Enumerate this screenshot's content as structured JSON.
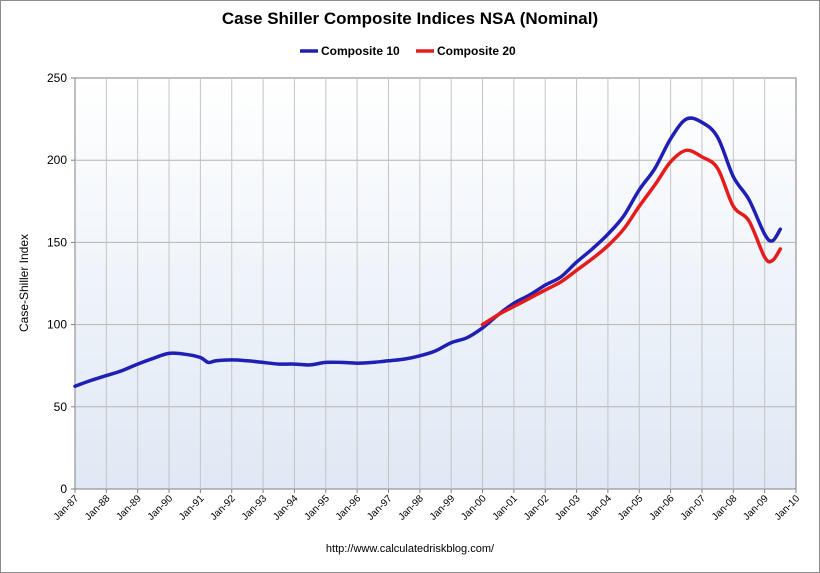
{
  "chart_data": {
    "type": "line",
    "title": "Case Shiller Composite Indices NSA (Nominal)",
    "xlabel": "",
    "ylabel": "Case-Shiller Index",
    "ylim": [
      0,
      250
    ],
    "yticks": [
      0,
      50,
      100,
      150,
      200,
      250
    ],
    "xlim": [
      "Jan-87",
      "Jan-10"
    ],
    "xticks": [
      "Jan-87",
      "Jan-88",
      "Jan-89",
      "Jan-90",
      "Jan-91",
      "Jan-92",
      "Jan-93",
      "Jan-94",
      "Jan-95",
      "Jan-96",
      "Jan-97",
      "Jan-98",
      "Jan-99",
      "Jan-00",
      "Jan-01",
      "Jan-02",
      "Jan-03",
      "Jan-04",
      "Jan-05",
      "Jan-06",
      "Jan-07",
      "Jan-08",
      "Jan-09",
      "Jan-10"
    ],
    "grid": true,
    "legend": "top-center",
    "series": [
      {
        "name": "Composite 10",
        "color": "#1f1fb4",
        "x": [
          "1987-01",
          "1987-07",
          "1988-01",
          "1988-07",
          "1989-01",
          "1989-07",
          "1990-01",
          "1990-07",
          "1991-01",
          "1991-04",
          "1991-07",
          "1992-01",
          "1992-07",
          "1993-01",
          "1993-07",
          "1994-01",
          "1994-07",
          "1995-01",
          "1995-07",
          "1996-01",
          "1996-07",
          "1997-01",
          "1997-07",
          "1998-01",
          "1998-07",
          "1999-01",
          "1999-07",
          "2000-01",
          "2000-07",
          "2001-01",
          "2001-07",
          "2002-01",
          "2002-07",
          "2003-01",
          "2003-07",
          "2004-01",
          "2004-07",
          "2005-01",
          "2005-07",
          "2006-01",
          "2006-07",
          "2007-01",
          "2007-07",
          "2008-01",
          "2008-07",
          "2009-01",
          "2009-04",
          "2009-07"
        ],
        "values": [
          62.5,
          66,
          69,
          72,
          76,
          79.5,
          82.5,
          82,
          80,
          77,
          78,
          78.5,
          78,
          77,
          76,
          76,
          75.5,
          77,
          77,
          76.5,
          77,
          78,
          79,
          81,
          84,
          89,
          92,
          98,
          106,
          113,
          118,
          124,
          129,
          138,
          146,
          155,
          166,
          182,
          195,
          213,
          225,
          223,
          214,
          190,
          176,
          155,
          151,
          158
        ]
      },
      {
        "name": "Composite 20",
        "color": "#e51c1c",
        "x": [
          "2000-01",
          "2000-07",
          "2001-01",
          "2001-07",
          "2002-01",
          "2002-07",
          "2003-01",
          "2003-07",
          "2004-01",
          "2004-07",
          "2005-01",
          "2005-07",
          "2006-01",
          "2006-07",
          "2007-01",
          "2007-07",
          "2008-01",
          "2008-07",
          "2009-01",
          "2009-04",
          "2009-07"
        ],
        "values": [
          100,
          106,
          111,
          116,
          121,
          126,
          133,
          140,
          148,
          158,
          172,
          185,
          199,
          206,
          202,
          195,
          172,
          163,
          141,
          139,
          146
        ]
      }
    ],
    "footer": "http://www.calculatedriskblog.com/"
  }
}
